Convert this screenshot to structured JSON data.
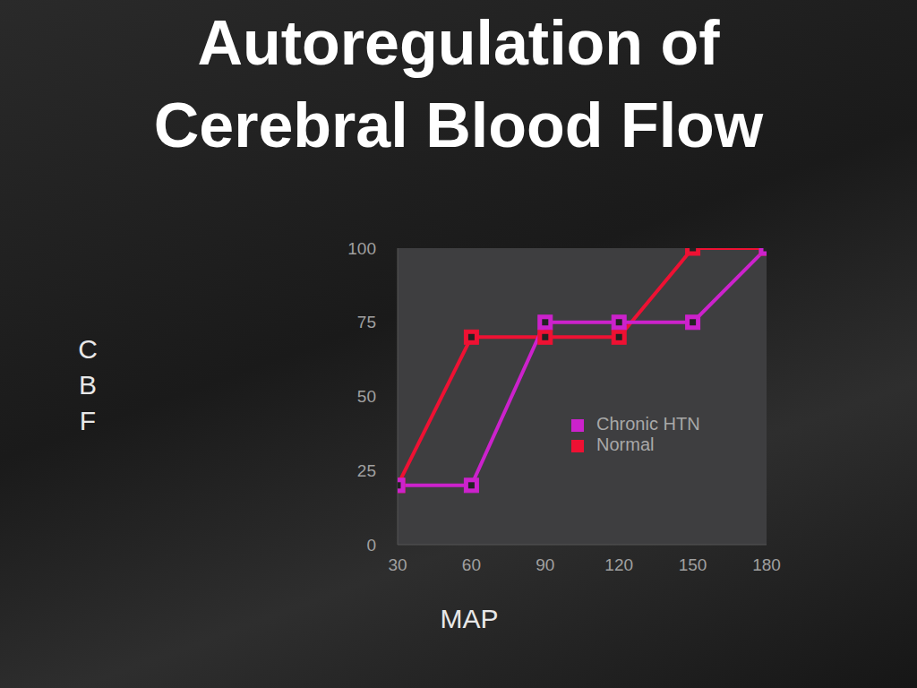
{
  "chart_data": {
    "type": "line",
    "title": "Autoregulation of Cerebral Blood Flow",
    "x_label": "MAP",
    "y_label": "CBF",
    "x": [
      30,
      60,
      90,
      120,
      150,
      180
    ],
    "series": [
      {
        "name": "Normal",
        "color": "#ee1133",
        "values": [
          20,
          70,
          70,
          70,
          100,
          100
        ],
        "marker": "square"
      },
      {
        "name": "Chronic HTN",
        "color": "#cc22cc",
        "values": [
          20,
          20,
          75,
          75,
          75,
          100
        ],
        "marker": "square"
      }
    ],
    "xlim": [
      30,
      180
    ],
    "xticks": [
      30,
      60,
      90,
      120,
      150,
      180
    ],
    "ylim": [
      0,
      100
    ],
    "yticks": [
      0,
      25,
      50,
      75,
      100
    ],
    "grid": false,
    "legend": "right"
  }
}
